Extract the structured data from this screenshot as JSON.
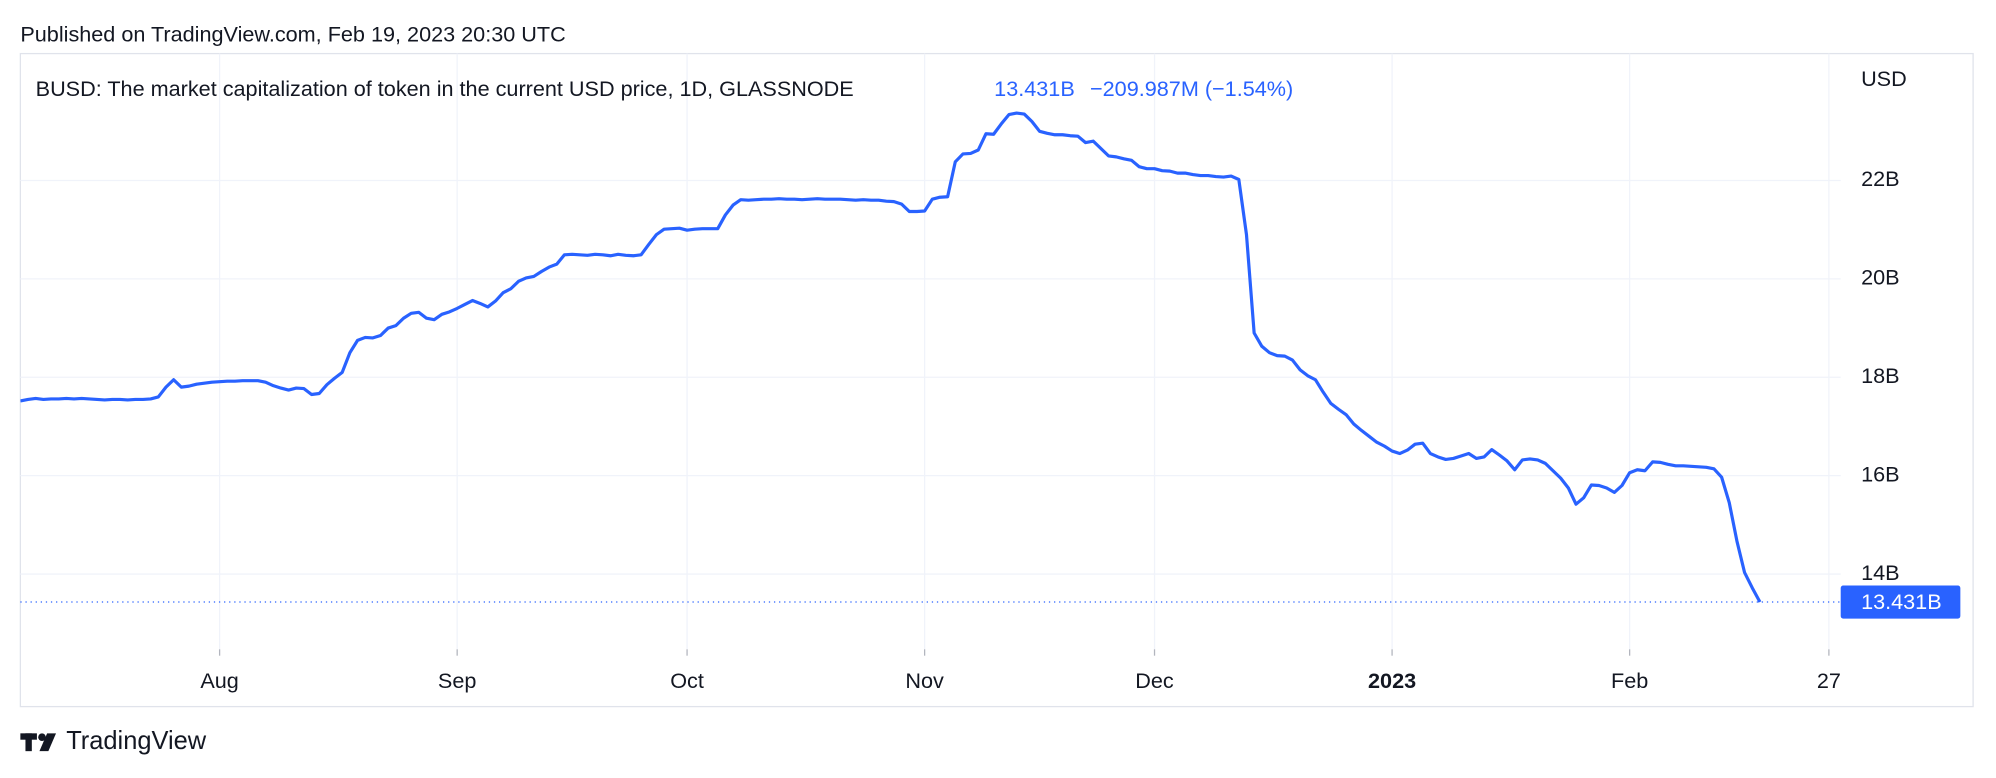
{
  "published": "Published on TradingView.com, Feb 19, 2023 20:30 UTC",
  "brand": "TradingView",
  "chart_data": {
    "type": "line",
    "title": "BUSD: The market capitalization of token in the current USD price, 1D, GLASSNODE",
    "legend_value": "13.431B",
    "change": "−209.987M (−1.54%)",
    "y_unit": "USD",
    "color": "#2962ff",
    "grid": true,
    "ylim": [
      12.47,
      24.58
    ],
    "yticks": [
      {
        "value": 14,
        "label": "14B"
      },
      {
        "value": 16,
        "label": "16B"
      },
      {
        "value": 18,
        "label": "18B"
      },
      {
        "value": 20,
        "label": "20B"
      },
      {
        "value": 22,
        "label": "22B"
      }
    ],
    "categories": [
      null,
      null,
      null,
      null,
      null,
      null,
      null,
      null,
      null,
      null,
      null,
      null,
      null,
      null,
      null,
      null,
      null,
      null,
      null,
      null,
      null,
      null,
      null,
      null,
      null,
      null,
      "Aug",
      null,
      null,
      null,
      null,
      null,
      null,
      null,
      null,
      null,
      null,
      null,
      null,
      null,
      null,
      null,
      null,
      null,
      null,
      null,
      null,
      null,
      null,
      null,
      null,
      null,
      null,
      null,
      null,
      null,
      null,
      "Sep",
      null,
      null,
      null,
      null,
      null,
      null,
      null,
      null,
      null,
      null,
      null,
      null,
      null,
      null,
      null,
      null,
      null,
      null,
      null,
      null,
      null,
      null,
      null,
      null,
      null,
      null,
      null,
      null,
      null,
      "Oct",
      null,
      null,
      null,
      null,
      null,
      null,
      null,
      null,
      null,
      null,
      null,
      null,
      null,
      null,
      null,
      null,
      null,
      null,
      null,
      null,
      null,
      null,
      null,
      null,
      null,
      null,
      null,
      null,
      null,
      null,
      "Nov",
      null,
      null,
      null,
      null,
      null,
      null,
      null,
      null,
      null,
      null,
      null,
      null,
      null,
      null,
      null,
      null,
      null,
      null,
      null,
      null,
      null,
      null,
      null,
      null,
      null,
      null,
      null,
      null,
      null,
      "Dec",
      null,
      null,
      null,
      null,
      null,
      null,
      null,
      null,
      null,
      null,
      null,
      null,
      null,
      null,
      null,
      null,
      null,
      null,
      null,
      null,
      null,
      null,
      null,
      null,
      null,
      null,
      null,
      null,
      null,
      null,
      "2023",
      null,
      null,
      null,
      null,
      null,
      null,
      null,
      null,
      null,
      null,
      null,
      null,
      null,
      null,
      null,
      null,
      null,
      null,
      null,
      null,
      null,
      null,
      null,
      null,
      null,
      null,
      null,
      null,
      null,
      null,
      "Feb",
      null,
      null,
      null,
      null,
      null,
      null,
      null,
      null,
      null,
      null,
      null,
      null,
      null,
      null,
      null,
      null,
      null,
      null,
      null,
      null,
      null,
      null,
      null,
      null,
      null,
      "27"
    ],
    "values": [
      17.52,
      17.55,
      17.57,
      17.55,
      17.56,
      17.56,
      17.57,
      17.56,
      17.57,
      17.56,
      17.55,
      17.54,
      17.55,
      17.55,
      17.54,
      17.55,
      17.55,
      17.56,
      17.6,
      17.8,
      17.95,
      17.8,
      17.82,
      17.86,
      17.88,
      17.9,
      17.91,
      17.92,
      17.92,
      17.93,
      17.93,
      17.93,
      17.9,
      17.83,
      17.78,
      17.74,
      17.78,
      17.77,
      17.65,
      17.67,
      17.85,
      17.98,
      18.1,
      18.5,
      18.75,
      18.81,
      18.8,
      18.85,
      19.0,
      19.05,
      19.2,
      19.3,
      19.32,
      19.2,
      19.17,
      19.28,
      19.33,
      19.4,
      19.48,
      19.56,
      19.5,
      19.43,
      19.55,
      19.72,
      19.8,
      19.95,
      20.02,
      20.05,
      20.15,
      20.24,
      20.3,
      20.49,
      20.5,
      20.49,
      20.48,
      20.5,
      20.49,
      20.47,
      20.5,
      20.48,
      20.47,
      20.49,
      20.7,
      20.9,
      21.01,
      21.02,
      21.03,
      20.99,
      21.01,
      21.02,
      21.02,
      21.02,
      21.3,
      21.5,
      21.61,
      21.6,
      21.61,
      21.62,
      21.62,
      21.63,
      21.62,
      21.62,
      21.61,
      21.62,
      21.63,
      21.62,
      21.62,
      21.62,
      21.61,
      21.6,
      21.61,
      21.6,
      21.6,
      21.58,
      21.57,
      21.52,
      21.37,
      21.37,
      21.38,
      21.62,
      21.66,
      21.67,
      22.38,
      22.54,
      22.55,
      22.62,
      22.95,
      22.94,
      23.15,
      23.34,
      23.37,
      23.35,
      23.2,
      23.0,
      22.96,
      22.93,
      22.93,
      22.91,
      22.9,
      22.77,
      22.8,
      22.65,
      22.5,
      22.48,
      22.44,
      22.41,
      22.28,
      22.24,
      22.24,
      22.2,
      22.19,
      22.15,
      22.15,
      22.12,
      22.1,
      22.1,
      22.08,
      22.07,
      22.09,
      22.02,
      20.9,
      18.9,
      18.63,
      18.5,
      18.44,
      18.43,
      18.35,
      18.15,
      18.03,
      17.95,
      17.7,
      17.47,
      17.35,
      17.24,
      17.05,
      16.92,
      16.8,
      16.68,
      16.6,
      16.5,
      16.45,
      16.52,
      16.64,
      16.66,
      16.45,
      16.38,
      16.33,
      16.35,
      16.4,
      16.45,
      16.35,
      16.38,
      16.53,
      16.42,
      16.3,
      16.12,
      16.32,
      16.34,
      16.32,
      16.25,
      16.1,
      15.95,
      15.75,
      15.42,
      15.55,
      15.81,
      15.8,
      15.75,
      15.66,
      15.8,
      16.06,
      16.12,
      16.1,
      16.28,
      16.27,
      16.23,
      16.2,
      16.2,
      16.19,
      16.18,
      16.17,
      16.14,
      15.97,
      15.45,
      14.67,
      14.03,
      13.72,
      13.431,
      null,
      null,
      null,
      null,
      null,
      null,
      null,
      null,
      null
    ]
  }
}
